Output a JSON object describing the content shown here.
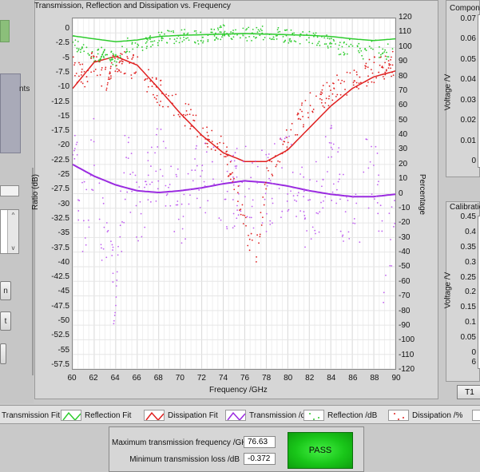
{
  "graph": {
    "title": "Transmission, Reflection and Dissipation vs. Frequency",
    "ylabel_left": "Ratio (dB)",
    "ylabel_right": "Percentage",
    "xlabel": "Frequency /GHz",
    "left_ticks": [
      "0",
      "-2.5",
      "-5",
      "-7.5",
      "-10",
      "-12.5",
      "-15",
      "-17.5",
      "-20",
      "-22.5",
      "-25",
      "-27.5",
      "-30",
      "-32.5",
      "-35",
      "-37.5",
      "-40",
      "-42.5",
      "-45",
      "-47.5",
      "-50",
      "-52.5",
      "-55",
      "-57.5"
    ],
    "right_ticks": [
      "120",
      "110",
      "100",
      "90",
      "80",
      "70",
      "60",
      "50",
      "40",
      "30",
      "20",
      "10",
      "0",
      "-10",
      "-20",
      "-30",
      "-40",
      "-50",
      "-60",
      "-70",
      "-80",
      "-90",
      "-100",
      "-110",
      "-120"
    ],
    "x_ticks": [
      "60",
      "62",
      "64",
      "66",
      "68",
      "70",
      "72",
      "74",
      "76",
      "78",
      "80",
      "82",
      "84",
      "86",
      "88",
      "90"
    ]
  },
  "chart_data": {
    "type": "scatter",
    "title": "Transmission, Reflection and Dissipation vs. Frequency",
    "xlabel": "Frequency /GHz",
    "ylabel": "Ratio (dB)",
    "y2label": "Percentage",
    "xlim": [
      60,
      90
    ],
    "ylim": [
      -57.5,
      2.5
    ],
    "y2lim": [
      -120,
      120
    ],
    "series": [
      {
        "name": "Reflection Fit",
        "kind": "line",
        "color": "#2ecc2e",
        "axis": "left",
        "x": [
          60,
          62,
          64,
          66,
          68,
          70,
          72,
          74,
          76,
          78,
          80,
          82,
          84,
          86,
          88,
          90
        ],
        "y": [
          -0.5,
          -1.0,
          -1.5,
          -1.2,
          -0.6,
          -0.4,
          -0.3,
          -0.2,
          -0.1,
          -0.2,
          -0.3,
          -0.4,
          -0.6,
          -1.0,
          -1.3,
          -1.0
        ]
      },
      {
        "name": "Dissipation Fit",
        "kind": "line",
        "color": "#e02020",
        "axis": "right",
        "x": [
          60,
          62,
          64,
          66,
          68,
          70,
          72,
          74,
          76,
          78,
          80,
          82,
          84,
          86,
          88,
          90
        ],
        "y": [
          72,
          90,
          94,
          88,
          72,
          55,
          40,
          28,
          22,
          22,
          30,
          45,
          60,
          72,
          80,
          84
        ]
      },
      {
        "name": "Transmission /dB",
        "kind": "line",
        "color": "#9a2be0",
        "axis": "left",
        "x": [
          60,
          62,
          64,
          66,
          68,
          70,
          72,
          74,
          76,
          78,
          80,
          82,
          84,
          86,
          88,
          90
        ],
        "y": [
          -22.5,
          -24.5,
          -26.0,
          -27.0,
          -27.3,
          -27.0,
          -26.5,
          -25.8,
          -25.3,
          -25.6,
          -26.2,
          -27.0,
          -27.6,
          -28.0,
          -28.0,
          -27.6
        ]
      },
      {
        "name": "Reflection /dB",
        "kind": "scatter",
        "color": "#2ecc2e",
        "axis": "left",
        "x": [
          60,
          61,
          62,
          63,
          64,
          65,
          66,
          68,
          70,
          72,
          74,
          76,
          78,
          80,
          82,
          84,
          85,
          86,
          87,
          88,
          89,
          90
        ],
        "y": [
          -1.5,
          -2.8,
          -4.0,
          -3.5,
          -4.5,
          -2.0,
          -2.5,
          -1.0,
          -0.5,
          -0.8,
          0.2,
          -0.3,
          0.1,
          -0.5,
          -0.8,
          -1.5,
          -3.0,
          -2.0,
          -3.5,
          -2.0,
          -4.0,
          -1.0
        ]
      },
      {
        "name": "Dissipation /%",
        "kind": "scatter",
        "color": "#e02020",
        "axis": "right",
        "x": [
          60,
          61,
          62,
          63,
          64,
          65,
          66,
          68,
          70,
          72,
          74,
          75,
          76,
          77,
          78,
          80,
          82,
          84,
          86,
          88,
          90
        ],
        "y": [
          88,
          80,
          92,
          78,
          90,
          88,
          86,
          70,
          58,
          45,
          30,
          10,
          -20,
          -45,
          10,
          40,
          60,
          70,
          78,
          85,
          90
        ]
      },
      {
        "name": "Transmission /dB (points)",
        "kind": "scatter",
        "color": "#c060f0",
        "axis": "left",
        "x": [
          60,
          61,
          62,
          63,
          64,
          65,
          66,
          68,
          70,
          72,
          74,
          76,
          78,
          80,
          82,
          84,
          86,
          88,
          89,
          90
        ],
        "y": [
          -18,
          -33,
          -20,
          -38,
          -44,
          -20,
          -30,
          -22,
          -30,
          -24,
          -28,
          -26,
          -27,
          -24,
          -32,
          -22,
          -34,
          -20,
          -42,
          -28
        ]
      }
    ]
  },
  "right_top": {
    "title": "Compone",
    "ylabel": "Voltage /V",
    "ticks": [
      "0.07",
      "0.06",
      "0.05",
      "0.04",
      "0.03",
      "0.02",
      "0.01",
      "0"
    ]
  },
  "right_bottom": {
    "title": "Calibration",
    "ylabel": "Voltage /V",
    "ticks": [
      "0.45",
      "0.4",
      "0.35",
      "0.3",
      "0.25",
      "0.2",
      "0.15",
      "0.1",
      "0.05",
      "0"
    ],
    "tail_label": "6"
  },
  "t1_label": "T1",
  "left_stub": {
    "text1": "nts",
    "scroll_up": "^",
    "scroll_down": "v",
    "btn1": "n",
    "btn2": "t"
  },
  "legend": [
    {
      "label": "Transmission Fit"
    },
    {
      "label": "Reflection Fit"
    },
    {
      "label": "Dissipation Fit"
    },
    {
      "label": "Transmission /dB"
    },
    {
      "label": "Reflection /dB"
    },
    {
      "label": "Dissipation /%"
    }
  ],
  "results": {
    "max_freq_label": "Maximum transmission frequency /GHz",
    "max_freq_value": "76.63",
    "min_loss_label": "Minimum transmission loss /dB",
    "min_loss_value": "-0.372",
    "status": "PASS"
  }
}
